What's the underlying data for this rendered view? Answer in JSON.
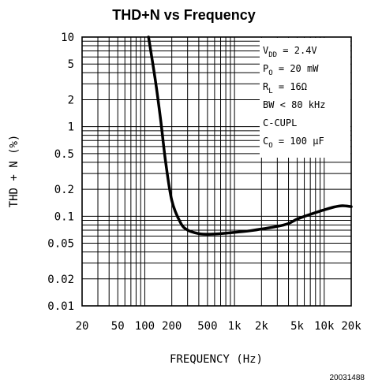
{
  "chart_data": {
    "type": "line",
    "title": "THD+N vs Frequency",
    "xlabel": "FREQUENCY (Hz)",
    "ylabel": "THD + N (%)",
    "x_scale": "log",
    "y_scale": "log",
    "xlim": [
      20,
      20000
    ],
    "ylim": [
      0.01,
      10
    ],
    "grid": true,
    "x_ticks": [
      {
        "value": 20,
        "label": "20"
      },
      {
        "value": 50,
        "label": "50"
      },
      {
        "value": 100,
        "label": "100"
      },
      {
        "value": 200,
        "label": "200"
      },
      {
        "value": 500,
        "label": "500"
      },
      {
        "value": 1000,
        "label": "1k"
      },
      {
        "value": 2000,
        "label": "2k"
      },
      {
        "value": 5000,
        "label": "5k"
      },
      {
        "value": 10000,
        "label": "10k"
      },
      {
        "value": 20000,
        "label": "20k"
      }
    ],
    "y_ticks": [
      {
        "value": 10,
        "label": "10"
      },
      {
        "value": 5,
        "label": "5"
      },
      {
        "value": 2,
        "label": "2"
      },
      {
        "value": 1,
        "label": "1"
      },
      {
        "value": 0.5,
        "label": "0.5"
      },
      {
        "value": 0.2,
        "label": "0.2"
      },
      {
        "value": 0.1,
        "label": "0.1"
      },
      {
        "value": 0.05,
        "label": "0.05"
      },
      {
        "value": 0.02,
        "label": "0.02"
      },
      {
        "value": 0.01,
        "label": "0.01"
      }
    ],
    "series": [
      {
        "x": [
          110,
          130,
          150,
          170,
          200,
          250,
          300,
          400,
          500,
          700,
          1000,
          1500,
          2000,
          3000,
          4000,
          5000,
          7000,
          10000,
          13000,
          16000,
          20000
        ],
        "y": [
          10,
          3.5,
          1.2,
          0.42,
          0.15,
          0.085,
          0.07,
          0.064,
          0.063,
          0.064,
          0.066,
          0.069,
          0.072,
          0.077,
          0.083,
          0.093,
          0.105,
          0.118,
          0.127,
          0.131,
          0.128
        ]
      }
    ],
    "annotations": [
      {
        "main": "V",
        "sub": "DD",
        "rest": " = 2.4V"
      },
      {
        "main": "P",
        "sub": "O",
        "rest": " = 20 mW"
      },
      {
        "main": "R",
        "sub": "L",
        "rest": " = 16Ω"
      },
      {
        "main": "BW < 80 kHz",
        "sub": "",
        "rest": ""
      },
      {
        "main": "C-CUPL",
        "sub": "",
        "rest": ""
      },
      {
        "main": "C",
        "sub": "O",
        "rest": " = 100 μF"
      }
    ],
    "figure_id": "20031488"
  },
  "colors": {
    "line": "#000000",
    "grid": "#000000",
    "background": "#ffffff"
  }
}
